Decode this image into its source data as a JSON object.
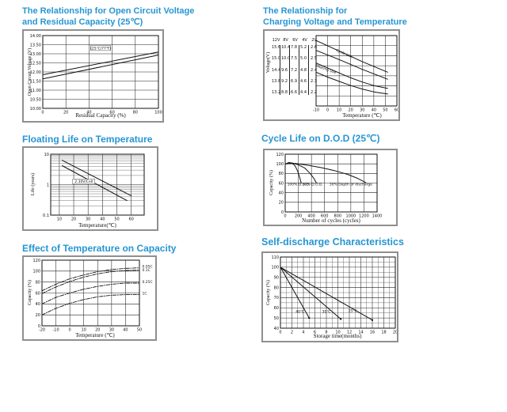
{
  "page": {
    "background": "#ffffff",
    "title_color": "#2796d3"
  },
  "chart_data": [
    {
      "type": "line",
      "title": "The Relationship for Open Circuit Voltage and Residual Capacity (25℃)",
      "title_lines": [
        "The Relationship for Open Circuit Voltage",
        "and Residual Capacity (25℃)"
      ],
      "xlabel": "Residual Capacity (%)",
      "ylabel": "Open Circuit Voltage (V)",
      "xlim": [
        0,
        100
      ],
      "ylim": [
        10,
        14
      ],
      "x_tick_values": [
        0,
        20,
        40,
        60,
        80,
        100
      ],
      "x_ticks": [
        "0",
        "20",
        "40",
        "60",
        "80",
        "100"
      ],
      "y_tick_values": [
        14,
        13.5,
        13,
        12.5,
        12,
        11.5,
        11,
        10.5,
        10
      ],
      "y_ticks": [
        "14.00",
        "13.50",
        "13.00",
        "12.50",
        "12.00",
        "11.50",
        "11.00",
        "10.50",
        "10.00"
      ],
      "grid": true,
      "series": [
        {
          "name": "ocv-upper",
          "points": [
            [
              0,
              11.85
            ],
            [
              100,
              13.1
            ]
          ]
        },
        {
          "name": "ocv-lower",
          "points": [
            [
              0,
              11.62
            ],
            [
              100,
              12.93
            ]
          ]
        }
      ],
      "annotations": [
        {
          "text": "(25℃/77℉)",
          "x": 50,
          "y": 13.25,
          "box": true
        }
      ]
    },
    {
      "type": "line",
      "title": "The Relationship for Charging Voltage and Temperature",
      "title_lines": [
        "The Relationship for",
        "Charging Voltage and Temperature"
      ],
      "xlabel": "Temperature (℃)",
      "ylabel": "Voltage(V)",
      "xlim": [
        -10,
        60
      ],
      "ylim": [
        2.16,
        2.66
      ],
      "x_tick_values": [
        -10,
        0,
        10,
        20,
        30,
        40,
        50,
        60
      ],
      "x_ticks": [
        "-10",
        "0",
        "10",
        "20",
        "30",
        "40",
        "50",
        "60"
      ],
      "grid": true,
      "grid_y_count": 7,
      "y_scales": [
        {
          "label": "12V",
          "ticks": [
            "15.6",
            "15.0",
            "14.4",
            "13.8",
            "13.2"
          ]
        },
        {
          "label": "8V",
          "ticks": [
            "10.4",
            "10.0",
            "9.6",
            "9.2",
            "8.8"
          ]
        },
        {
          "label": "6V",
          "ticks": [
            "7.8",
            "7.5",
            "7.2",
            "6.9",
            "6.6"
          ]
        },
        {
          "label": "4V",
          "ticks": [
            "5.2",
            "5.0",
            "4.8",
            "4.6",
            "4.4"
          ]
        },
        {
          "label": "2V",
          "ticks": [
            "2.6",
            "2.5",
            "2.4",
            "2.3",
            "2.2"
          ]
        }
      ],
      "series": [
        {
          "name": "cycle-use-upper",
          "points": [
            [
              -10,
              2.625
            ],
            [
              10,
              2.55
            ],
            [
              30,
              2.475
            ],
            [
              52,
              2.4
            ]
          ]
        },
        {
          "name": "cycle-use-lower",
          "points": [
            [
              -10,
              2.555
            ],
            [
              10,
              2.49
            ],
            [
              30,
              2.42
            ],
            [
              52,
              2.35
            ]
          ]
        },
        {
          "name": "floating-use-upper",
          "points": [
            [
              -10,
              2.465
            ],
            [
              0,
              2.43
            ],
            [
              10,
              2.395
            ],
            [
              20,
              2.36
            ],
            [
              30,
              2.33
            ],
            [
              40,
              2.305
            ],
            [
              52,
              2.285
            ]
          ]
        },
        {
          "name": "floating-use-lower",
          "points": [
            [
              -10,
              2.4
            ],
            [
              0,
              2.365
            ],
            [
              10,
              2.335
            ],
            [
              20,
              2.305
            ],
            [
              30,
              2.28
            ],
            [
              40,
              2.26
            ],
            [
              52,
              2.245
            ]
          ]
        }
      ],
      "annotations": [
        {
          "text": "Cycle Use",
          "x": 14,
          "y": 2.525,
          "rotate": 24
        },
        {
          "text": "Floating Use",
          "x": -2,
          "y": 2.415,
          "rotate": 20
        }
      ]
    },
    {
      "type": "line",
      "title": "Floating Life on Temperature",
      "title_lines": [
        "Floating Life on Temperature"
      ],
      "xlabel": "Temperature(℃)",
      "ylabel": "Life (years)",
      "xlim": [
        4,
        69
      ],
      "ylim": [
        0.1,
        10
      ],
      "yscale": "log",
      "x_tick_values": [
        10,
        20,
        30,
        40,
        50,
        60
      ],
      "x_ticks": [
        "10",
        "20",
        "30",
        "40",
        "50",
        "60"
      ],
      "y_tick_values": [
        10,
        1,
        0.1
      ],
      "y_ticks": [
        "10",
        "1",
        "0.1"
      ],
      "grid": true,
      "series": [
        {
          "name": "floating-life-upper",
          "points": [
            [
              12,
              6.3
            ],
            [
              60,
              0.43
            ]
          ]
        },
        {
          "name": "floating-life-lower",
          "points": [
            [
              12,
              4.2
            ],
            [
              57,
              0.3
            ]
          ]
        }
      ],
      "annotations": [
        {
          "text": "2.30V/Cell",
          "x": 27,
          "y": 1.15,
          "box": true
        }
      ]
    },
    {
      "type": "line",
      "title": "Cycle Life on D.O.D (25℃)",
      "title_lines": [
        "Cycle Life on D.O.D (25℃)"
      ],
      "xlabel": "Number of cycles (cycles)",
      "ylabel": "Capacity (%)",
      "xlim": [
        0,
        1400
      ],
      "ylim": [
        0,
        120
      ],
      "x_tick_values": [
        0,
        200,
        400,
        600,
        800,
        1000,
        1200,
        1400
      ],
      "x_ticks": [
        "0",
        "200",
        "400",
        "600",
        "800",
        "1000",
        "1200",
        "1400"
      ],
      "y_tick_values": [
        0,
        20,
        40,
        60,
        80,
        100,
        120
      ],
      "y_ticks": [
        "0",
        "20",
        "40",
        "60",
        "80",
        "100",
        "120"
      ],
      "grid": true,
      "series": [
        {
          "name": "dod-100",
          "points": [
            [
              10,
              100
            ],
            [
              60,
              103
            ],
            [
              110,
              101
            ],
            [
              150,
              96
            ],
            [
              190,
              85
            ],
            [
              220,
              72
            ],
            [
              245,
              60
            ]
          ]
        },
        {
          "name": "dod-50",
          "points": [
            [
              10,
              100
            ],
            [
              100,
              102
            ],
            [
              200,
              98
            ],
            [
              300,
              91
            ],
            [
              380,
              80
            ],
            [
              440,
              69
            ],
            [
              475,
              60
            ]
          ]
        },
        {
          "name": "dod-30",
          "points": [
            [
              10,
              100
            ],
            [
              150,
              101
            ],
            [
              350,
              97
            ],
            [
              550,
              92
            ],
            [
              750,
              86
            ],
            [
              950,
              78
            ],
            [
              1100,
              70
            ],
            [
              1230,
              61
            ]
          ]
        }
      ],
      "annotations": [
        {
          "text": "100% D.O.D.",
          "x": 205,
          "y": 55
        },
        {
          "text": "50% D.O.D.",
          "x": 420,
          "y": 55
        },
        {
          "text": "30% Depth of discharge",
          "x": 1000,
          "y": 55
        }
      ]
    },
    {
      "type": "line",
      "title": "Effect of Temperature on Capacity",
      "title_lines": [
        "Effect of Temperature on Capacity"
      ],
      "xlabel": "Temperature (℃)",
      "ylabel": "Capacity (%)",
      "xlim": [
        -20,
        50
      ],
      "ylim": [
        0,
        120
      ],
      "x_tick_values": [
        -20,
        -10,
        0,
        10,
        20,
        30,
        40,
        50
      ],
      "x_ticks": [
        "-20",
        "-10",
        "0",
        "10",
        "20",
        "30",
        "40",
        "50"
      ],
      "y_tick_values": [
        0,
        20,
        40,
        60,
        80,
        100,
        120
      ],
      "y_ticks": [
        "0",
        "20",
        "40",
        "60",
        "80",
        "100",
        "120"
      ],
      "grid": true,
      "series": [
        {
          "name": "rate-0.05C",
          "style": "dashdot",
          "points": [
            [
              -20,
              64
            ],
            [
              -10,
              76
            ],
            [
              0,
              86
            ],
            [
              10,
              93
            ],
            [
              20,
              99
            ],
            [
              30,
              103
            ],
            [
              40,
              105
            ],
            [
              50,
              106
            ]
          ]
        },
        {
          "name": "rate-0.1C",
          "style": "dashdot",
          "points": [
            [
              -20,
              59
            ],
            [
              -10,
              71
            ],
            [
              0,
              81
            ],
            [
              10,
              89
            ],
            [
              20,
              95
            ],
            [
              30,
              99
            ],
            [
              40,
              101
            ],
            [
              50,
              102
            ]
          ]
        },
        {
          "name": "rate-0.25C",
          "style": "dashdot",
          "points": [
            [
              -20,
              40
            ],
            [
              -10,
              52
            ],
            [
              0,
              60
            ],
            [
              10,
              67
            ],
            [
              20,
              72
            ],
            [
              30,
              76
            ],
            [
              40,
              78
            ],
            [
              50,
              78
            ]
          ]
        },
        {
          "name": "rate-1C",
          "style": "dashdot",
          "points": [
            [
              -20,
              20
            ],
            [
              -10,
              32
            ],
            [
              0,
              41
            ],
            [
              10,
              48
            ],
            [
              20,
              53
            ],
            [
              30,
              56
            ],
            [
              40,
              57
            ],
            [
              50,
              57
            ]
          ]
        }
      ],
      "annotations": [
        {
          "text": "0.05C",
          "x": 52,
          "y": 106,
          "anchor": "start"
        },
        {
          "text": "0.1C",
          "x": 52,
          "y": 100,
          "anchor": "start"
        },
        {
          "text": "0.25C",
          "x": 52,
          "y": 78,
          "anchor": "start"
        },
        {
          "text": "1C",
          "x": 52,
          "y": 57,
          "anchor": "start"
        }
      ]
    },
    {
      "type": "line",
      "title": "Self-discharge Characteristics",
      "title_lines": [
        "Self-discharge Characteristics"
      ],
      "xlabel": "Storage time(months)",
      "ylabel": "Capacity (%)",
      "xlim": [
        0,
        20
      ],
      "ylim": [
        40,
        110
      ],
      "x_tick_values": [
        0,
        2,
        4,
        6,
        8,
        10,
        12,
        14,
        16,
        18,
        20
      ],
      "x_ticks": [
        "0",
        "2",
        "4",
        "6",
        "8",
        "10",
        "12",
        "14",
        "16",
        "18",
        "20"
      ],
      "y_tick_values": [
        40,
        50,
        60,
        70,
        80,
        90,
        100,
        110
      ],
      "y_ticks": [
        "40",
        "50",
        "60",
        "70",
        "80",
        "90",
        "100",
        "110"
      ],
      "grid": true,
      "x_minor": 1,
      "y_minor": 5,
      "series": [
        {
          "name": "temp-40C",
          "points": [
            [
              0,
              100
            ],
            [
              5,
              50
            ]
          ],
          "end_marker": true
        },
        {
          "name": "temp-30C",
          "points": [
            [
              0,
              100
            ],
            [
              10.5,
              49
            ]
          ],
          "end_marker": true
        },
        {
          "name": "temp-25C",
          "points": [
            [
              0,
              100
            ],
            [
              16,
              48
            ]
          ],
          "end_marker": true
        }
      ],
      "annotations": [
        {
          "text": "40℃",
          "x": 3.4,
          "y": 55
        },
        {
          "text": "30℃",
          "x": 8,
          "y": 55
        },
        {
          "text": "25℃",
          "x": 12.6,
          "y": 56
        }
      ]
    }
  ]
}
